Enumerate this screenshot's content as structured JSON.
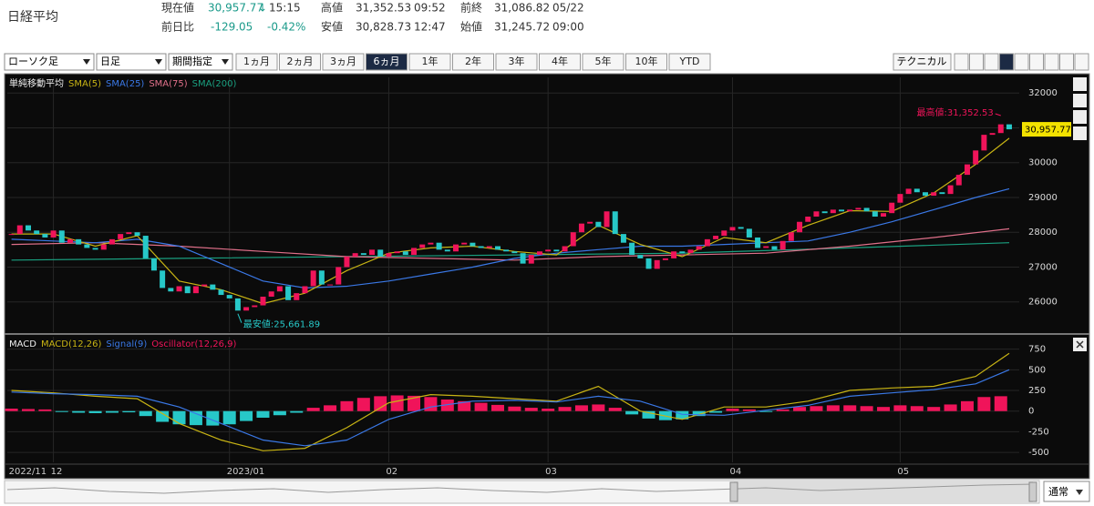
{
  "header": {
    "title": "日経平均",
    "quote": {
      "current": {
        "label": "現在値",
        "value": "30,957.77",
        "arrow": "↓",
        "time": "15:15"
      },
      "change": {
        "label": "前日比",
        "value": "-129.05",
        "percent": "-0.42%"
      },
      "high": {
        "label": "高値",
        "value": "31,352.53",
        "time": "09:52"
      },
      "low": {
        "label": "安値",
        "value": "30,828.73",
        "time": "12:47"
      },
      "prev_close": {
        "label": "前終",
        "value": "31,086.82",
        "date": "05/22"
      },
      "open": {
        "label": "始値",
        "value": "31,245.72",
        "time": "09:00"
      }
    }
  },
  "toolbar": {
    "selects": [
      "ローソク足",
      "日足",
      "期間指定"
    ],
    "periods": [
      "1ヵ月",
      "2ヵ月",
      "3ヵ月",
      "6ヵ月",
      "1年",
      "2年",
      "3年",
      "4年",
      "5年",
      "10年",
      "YTD"
    ],
    "active_period": "6ヵ月",
    "technical": "テクニカル"
  },
  "chart_data": [
    {
      "type": "candlestick",
      "legend_title": "単純移動平均",
      "up_color": "#f0145a",
      "down_color": "#27c8c8",
      "close": [
        27950,
        28200,
        28050,
        27950,
        27850,
        28050,
        27700,
        27800,
        27650,
        27550,
        27500,
        27650,
        27800,
        27950,
        28000,
        27900,
        27250,
        26900,
        26400,
        26300,
        26450,
        26250,
        26450,
        26500,
        26350,
        26200,
        26100,
        25750,
        25850,
        25900,
        26150,
        26300,
        26450,
        26050,
        26250,
        26450,
        26900,
        26500,
        26500,
        27000,
        27300,
        27400,
        27350,
        27500,
        27300,
        27400,
        27450,
        27350,
        27550,
        27650,
        27700,
        27500,
        27450,
        27650,
        27700,
        27600,
        27550,
        27600,
        27500,
        27450,
        27400,
        27100,
        27350,
        27450,
        27500,
        27450,
        27600,
        28000,
        28250,
        28300,
        28150,
        28600,
        27950,
        27700,
        27350,
        27250,
        26950,
        27200,
        27250,
        27450,
        27400,
        27500,
        27600,
        27800,
        27900,
        28050,
        28150,
        28100,
        27850,
        27550,
        27600,
        27500,
        27750,
        28000,
        28300,
        28450,
        28600,
        28550,
        28650,
        28600,
        28650,
        28700,
        28600,
        28450,
        28550,
        28850,
        29100,
        29250,
        29150,
        29050,
        29150,
        29100,
        29350,
        29650,
        29950,
        30350,
        30800,
        30850,
        31100,
        30957.77
      ],
      "series": [
        {
          "name": "SMA(5)",
          "color": "#c8b414",
          "x": [
            0,
            5,
            10,
            15,
            20,
            25,
            30,
            35,
            40,
            45,
            50,
            55,
            60,
            65,
            70,
            75,
            80,
            85,
            90,
            95,
            100,
            105,
            110,
            115,
            119
          ],
          "values": [
            27950,
            27950,
            27600,
            27900,
            26600,
            26350,
            25950,
            26250,
            26900,
            27400,
            27550,
            27600,
            27450,
            27350,
            28200,
            27650,
            27300,
            27850,
            27700,
            28200,
            28620,
            28600,
            29130,
            29950,
            30700
          ]
        },
        {
          "name": "SMA(25)",
          "color": "#3a78e6",
          "x": [
            0,
            5,
            10,
            15,
            20,
            25,
            30,
            35,
            40,
            45,
            50,
            55,
            60,
            65,
            70,
            75,
            80,
            85,
            90,
            95,
            100,
            105,
            110,
            115,
            119
          ],
          "values": [
            27800,
            27750,
            27700,
            27800,
            27600,
            27100,
            26600,
            26400,
            26450,
            26600,
            26800,
            27000,
            27250,
            27400,
            27500,
            27600,
            27600,
            27650,
            27700,
            27750,
            28000,
            28300,
            28650,
            29000,
            29250
          ]
        },
        {
          "name": "SMA(75)",
          "color": "#e0708a",
          "x": [
            0,
            10,
            20,
            30,
            40,
            50,
            60,
            70,
            80,
            90,
            100,
            110,
            119
          ],
          "values": [
            27650,
            27700,
            27600,
            27450,
            27300,
            27250,
            27200,
            27300,
            27350,
            27400,
            27600,
            27850,
            28100
          ]
        },
        {
          "name": "SMA(200)",
          "color": "#1aa080",
          "x": [
            0,
            20,
            40,
            60,
            80,
            100,
            119
          ],
          "values": [
            27200,
            27250,
            27300,
            27350,
            27400,
            27550,
            27700
          ]
        }
      ],
      "last": {
        "value": 30957.77,
        "label": "30,957.77"
      },
      "annotations": [
        {
          "text": "最高値:31,352.53",
          "x": 118,
          "y": 31352.53,
          "color": "#f0145a"
        },
        {
          "text": "最安値:25,661.89",
          "x": 27,
          "y": 25661.89,
          "color": "#27c8c8"
        }
      ],
      "xlim": [
        -0.5,
        120.2
      ],
      "ylim": [
        25130,
        32450
      ],
      "yticks": [
        26000,
        27000,
        28000,
        29000,
        30000,
        31000,
        32000
      ],
      "grid": true
    },
    {
      "type": "macd",
      "legend_title": "MACD",
      "series": [
        {
          "name": "MACD(12,26)",
          "color": "#c8b414",
          "x": [
            0,
            5,
            10,
            15,
            20,
            25,
            30,
            35,
            40,
            45,
            50,
            55,
            60,
            65,
            70,
            75,
            80,
            85,
            90,
            95,
            100,
            105,
            110,
            115,
            119
          ],
          "values": [
            250,
            220,
            180,
            150,
            -150,
            -350,
            -480,
            -450,
            -200,
            100,
            200,
            180,
            150,
            120,
            300,
            0,
            -100,
            50,
            50,
            120,
            250,
            280,
            300,
            420,
            700
          ]
        },
        {
          "name": "Signal(9)",
          "color": "#3a78e6",
          "x": [
            0,
            5,
            10,
            15,
            20,
            25,
            30,
            35,
            40,
            45,
            50,
            55,
            60,
            65,
            70,
            75,
            80,
            85,
            90,
            95,
            100,
            105,
            110,
            115,
            119
          ],
          "values": [
            230,
            210,
            200,
            180,
            50,
            -150,
            -350,
            -420,
            -350,
            -100,
            50,
            120,
            130,
            110,
            180,
            120,
            -40,
            -50,
            10,
            70,
            180,
            220,
            260,
            330,
            500
          ]
        },
        {
          "name": "Oscillator(12,26,9)",
          "color": "#f0145a",
          "negative_color": "#27c8c8",
          "style": "bar",
          "x": [
            0,
            2,
            4,
            6,
            8,
            10,
            12,
            14,
            16,
            18,
            20,
            22,
            24,
            26,
            28,
            30,
            32,
            34,
            36,
            38,
            40,
            42,
            44,
            46,
            48,
            50,
            52,
            54,
            56,
            58,
            60,
            62,
            64,
            66,
            68,
            70,
            72,
            74,
            76,
            78,
            80,
            82,
            84,
            86,
            88,
            90,
            92,
            94,
            96,
            98,
            100,
            102,
            104,
            106,
            108,
            110,
            112,
            114,
            116,
            118
          ],
          "values": [
            30,
            25,
            20,
            -10,
            -20,
            -25,
            -20,
            -15,
            -60,
            -130,
            -160,
            -170,
            -175,
            -160,
            -120,
            -80,
            -50,
            -20,
            40,
            70,
            120,
            160,
            180,
            190,
            185,
            170,
            140,
            120,
            100,
            75,
            55,
            40,
            30,
            50,
            70,
            80,
            40,
            -40,
            -90,
            -110,
            -100,
            -60,
            -20,
            30,
            20,
            -10,
            20,
            50,
            60,
            70,
            70,
            60,
            50,
            70,
            60,
            50,
            80,
            120,
            170,
            180
          ]
        }
      ],
      "xlim": [
        -0.5,
        120.2
      ],
      "ylim": [
        -620,
        900
      ],
      "yticks": [
        -500,
        -250,
        0,
        250,
        500,
        750
      ],
      "grid": true,
      "xticks": [
        {
          "value": 0,
          "label": "2022/11"
        },
        {
          "value": 5,
          "label": "12"
        },
        {
          "value": 26,
          "label": "2023/01"
        },
        {
          "value": 45,
          "label": "02"
        },
        {
          "value": 64,
          "label": "03"
        },
        {
          "value": 86,
          "label": "04"
        },
        {
          "value": 106,
          "label": "05"
        }
      ]
    }
  ],
  "navigator": {
    "mode": "通常"
  }
}
